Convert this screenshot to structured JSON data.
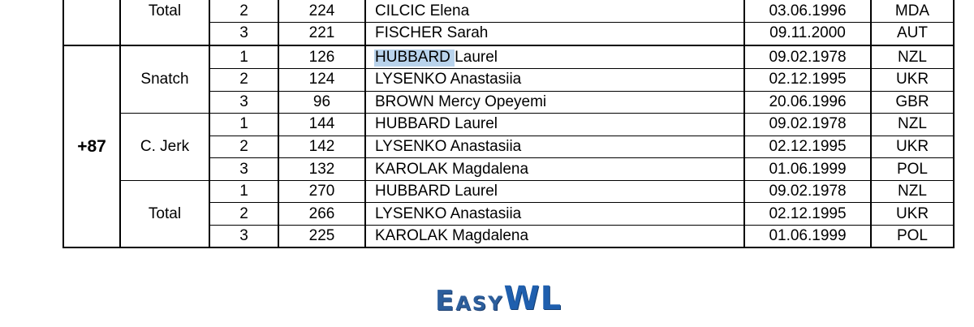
{
  "top_group": {
    "lift": "Total",
    "rows": [
      [
        2,
        224,
        "CILCIC Elena",
        "03.06.1996",
        "MDA"
      ],
      [
        3,
        221,
        "FISCHER Sarah",
        "09.11.2000",
        "AUT"
      ]
    ]
  },
  "category": {
    "label": "+87",
    "groups": [
      {
        "lift": "Snatch",
        "rows": [
          [
            1,
            126,
            "HUBBARD Laurel",
            "09.02.1978",
            "NZL"
          ],
          [
            2,
            124,
            "LYSENKO Anastasiia",
            "02.12.1995",
            "UKR"
          ],
          [
            3,
            96,
            "BROWN Mercy Opeyemi",
            "20.06.1996",
            "GBR"
          ]
        ]
      },
      {
        "lift": "C. Jerk",
        "rows": [
          [
            1,
            144,
            "HUBBARD Laurel",
            "09.02.1978",
            "NZL"
          ],
          [
            2,
            142,
            "LYSENKO Anastasiia",
            "02.12.1995",
            "UKR"
          ],
          [
            3,
            132,
            "KAROLAK Magdalena",
            "01.06.1999",
            "POL"
          ]
        ]
      },
      {
        "lift": "Total",
        "rows": [
          [
            1,
            270,
            "HUBBARD Laurel",
            "09.02.1978",
            "NZL"
          ],
          [
            2,
            266,
            "LYSENKO Anastasiia",
            "02.12.1995",
            "UKR"
          ],
          [
            3,
            225,
            "KAROLAK Magdalena",
            "01.06.1999",
            "POL"
          ]
        ]
      }
    ]
  },
  "logo": {
    "parts": [
      "Easy",
      "WL"
    ]
  }
}
